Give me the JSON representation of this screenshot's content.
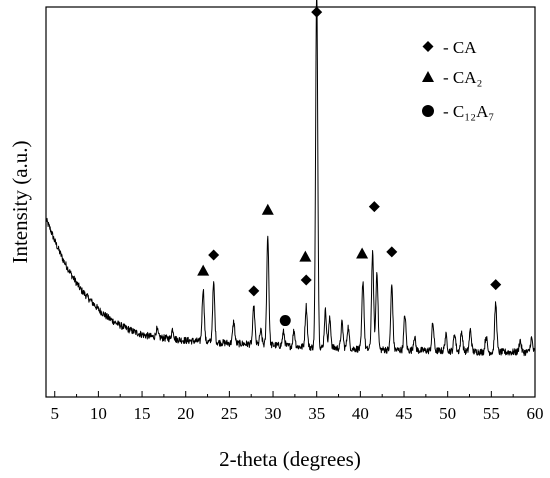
{
  "chart_data": {
    "type": "line",
    "title": "",
    "xlabel": "2-theta (degrees)",
    "ylabel": "Intensity (a.u.)",
    "xlim": [
      4,
      60
    ],
    "ylim": [
      0,
      1
    ],
    "xticks": [
      "5",
      "10",
      "15",
      "20",
      "25",
      "30",
      "35",
      "40",
      "45",
      "50",
      "55",
      "60"
    ],
    "grid": false,
    "legend_position": "top-right",
    "legend": [
      {
        "marker": "diamond",
        "label": "- CA"
      },
      {
        "marker": "triangle",
        "label": "- CA₂"
      },
      {
        "marker": "circle",
        "label": "- C₁₂A₇"
      }
    ],
    "baseline": {
      "x": [
        4.0,
        4.5,
        5,
        6,
        7,
        8,
        9,
        10,
        11,
        12,
        13,
        14,
        15,
        16,
        18,
        20,
        22,
        25,
        28,
        30,
        32,
        35,
        38,
        40,
        45,
        50,
        55,
        58,
        60
      ],
      "y": [
        0.455,
        0.43,
        0.4,
        0.35,
        0.31,
        0.275,
        0.25,
        0.225,
        0.205,
        0.19,
        0.178,
        0.168,
        0.16,
        0.155,
        0.15,
        0.145,
        0.142,
        0.138,
        0.135,
        0.133,
        0.13,
        0.127,
        0.125,
        0.123,
        0.12,
        0.118,
        0.115,
        0.115,
        0.115
      ]
    },
    "peaks": [
      {
        "x": 16.7,
        "h": 0.02
      },
      {
        "x": 18.5,
        "h": 0.025
      },
      {
        "x": 22.0,
        "h": 0.135
      },
      {
        "x": 23.2,
        "h": 0.15
      },
      {
        "x": 25.5,
        "h": 0.055
      },
      {
        "x": 27.8,
        "h": 0.095
      },
      {
        "x": 28.6,
        "h": 0.035
      },
      {
        "x": 29.4,
        "h": 0.28
      },
      {
        "x": 31.2,
        "h": 0.035
      },
      {
        "x": 32.4,
        "h": 0.04
      },
      {
        "x": 33.8,
        "h": 0.105
      },
      {
        "x": 35.0,
        "h": 0.92
      },
      {
        "x": 36.0,
        "h": 0.095
      },
      {
        "x": 36.5,
        "h": 0.075
      },
      {
        "x": 37.9,
        "h": 0.065
      },
      {
        "x": 38.6,
        "h": 0.055
      },
      {
        "x": 40.3,
        "h": 0.175
      },
      {
        "x": 41.4,
        "h": 0.245
      },
      {
        "x": 41.9,
        "h": 0.2
      },
      {
        "x": 43.6,
        "h": 0.165
      },
      {
        "x": 45.1,
        "h": 0.09
      },
      {
        "x": 46.2,
        "h": 0.035
      },
      {
        "x": 48.3,
        "h": 0.07
      },
      {
        "x": 49.8,
        "h": 0.04
      },
      {
        "x": 50.8,
        "h": 0.045
      },
      {
        "x": 51.6,
        "h": 0.05
      },
      {
        "x": 52.6,
        "h": 0.055
      },
      {
        "x": 54.4,
        "h": 0.04
      },
      {
        "x": 55.5,
        "h": 0.125
      },
      {
        "x": 58.3,
        "h": 0.03
      },
      {
        "x": 59.6,
        "h": 0.035
      }
    ],
    "phase_markers": [
      {
        "phase": "CA",
        "marker": "diamond",
        "x": 35.0,
        "y": 0.987
      },
      {
        "phase": "CA",
        "marker": "diamond",
        "x": 23.2,
        "y": 0.364
      },
      {
        "phase": "CA",
        "marker": "diamond",
        "x": 27.8,
        "y": 0.272
      },
      {
        "phase": "CA",
        "marker": "diamond",
        "x": 33.8,
        "y": 0.3
      },
      {
        "phase": "CA",
        "marker": "diamond",
        "x": 41.6,
        "y": 0.488
      },
      {
        "phase": "CA",
        "marker": "diamond",
        "x": 43.6,
        "y": 0.372
      },
      {
        "phase": "CA",
        "marker": "diamond",
        "x": 55.5,
        "y": 0.288
      },
      {
        "phase": "CA2",
        "marker": "triangle",
        "x": 22.0,
        "y": 0.324
      },
      {
        "phase": "CA2",
        "marker": "triangle",
        "x": 29.4,
        "y": 0.48
      },
      {
        "phase": "CA2",
        "marker": "triangle",
        "x": 33.7,
        "y": 0.36
      },
      {
        "phase": "CA2",
        "marker": "triangle",
        "x": 40.2,
        "y": 0.368
      },
      {
        "phase": "C12A7",
        "marker": "circle",
        "x": 31.4,
        "y": 0.196
      }
    ]
  }
}
